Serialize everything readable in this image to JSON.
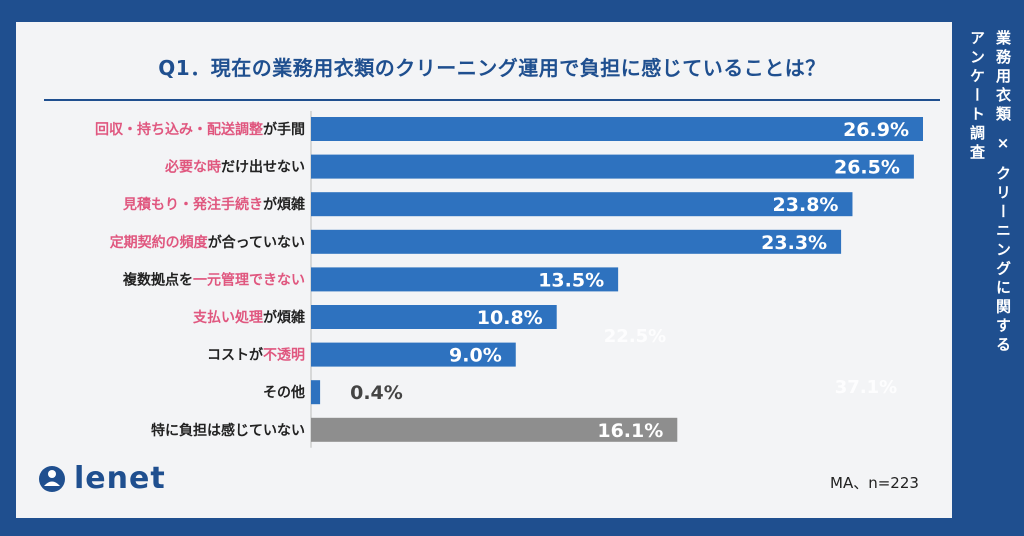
{
  "title": "Q1．現在の業務用衣類のクリーニング運用で負担に感じていることは？",
  "side_label": {
    "line1": "業務用衣類 × クリーニングに関する",
    "line2": "アンケート調査"
  },
  "logo_text": "lenet",
  "note": "MA、n=223",
  "colors": {
    "bar": "#2e72bf",
    "bar_none": "#8e8e8e",
    "accent": "#e0577f",
    "navy": "#1f4f8f",
    "label_dark": "#222222"
  },
  "chart_data": {
    "type": "bar",
    "orientation": "horizontal",
    "title": "Q1．現在の業務用衣類のクリーニング運用で負担に感じていることは？",
    "unit": "%",
    "xlim": [
      0,
      27
    ],
    "categories": [
      "回収・持ち込み・配送調整が手間",
      "必要な時だけ出せない",
      "見積もり・発注手続きが煩雑",
      "定期契約の頻度が合っていない",
      "複数拠点を一元管理できない",
      "支払い処理が煩雑",
      "コストが不透明",
      "その他",
      "特に負担は感じていない"
    ],
    "label_parts": [
      [
        {
          "t": "回収・持ち込み・配送調整",
          "h": true
        },
        {
          "t": "が手間",
          "h": false
        }
      ],
      [
        {
          "t": "必要な時",
          "h": true
        },
        {
          "t": "だけ出せない",
          "h": false
        }
      ],
      [
        {
          "t": "見積もり・発注手続き",
          "h": true
        },
        {
          "t": "が煩雑",
          "h": false
        }
      ],
      [
        {
          "t": "定期契約の頻度",
          "h": true
        },
        {
          "t": "が合っていない",
          "h": false
        }
      ],
      [
        {
          "t": "複数拠点を",
          "h": false
        },
        {
          "t": "一元管理できない",
          "h": true
        }
      ],
      [
        {
          "t": "支払い処理",
          "h": true
        },
        {
          "t": "が煩雑",
          "h": false
        }
      ],
      [
        {
          "t": "コストが",
          "h": false
        },
        {
          "t": "不透明",
          "h": true
        }
      ],
      [
        {
          "t": "その他",
          "h": false
        }
      ],
      [
        {
          "t": "特に負担は感じていない",
          "h": false
        }
      ]
    ],
    "values": [
      26.9,
      26.5,
      23.8,
      23.3,
      13.5,
      10.8,
      9.0,
      0.4,
      16.1
    ],
    "value_labels": [
      "26.9%",
      "26.5%",
      "23.8%",
      "23.3%",
      "13.5%",
      "10.8%",
      "9.0%",
      "0.4%",
      "16.1%"
    ],
    "gray_category_index": 8,
    "watermarks": [
      "22.5%",
      "37.1%"
    ]
  }
}
